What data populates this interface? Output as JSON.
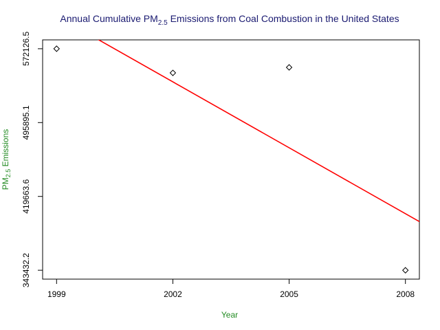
{
  "chart_data": {
    "type": "scatter",
    "title": [
      "Annual Cumulative PM",
      "2.5",
      " Emissions from Coal Combustion in the United States"
    ],
    "x_label": "Year",
    "y_label": [
      "PM",
      "2.5",
      " Emissions"
    ],
    "x": [
      1999,
      2002,
      2005,
      2008
    ],
    "values": [
      572126.5,
      547191,
      552890,
      343432.2
    ],
    "color": "#000000",
    "trend_line": {
      "color": "#ff0000",
      "x": [
        1998.64,
        2008.36
      ],
      "values": [
        614132,
        393688
      ]
    },
    "xlim": [
      1998.64,
      2008.36
    ],
    "xticks": [
      1999,
      2002,
      2005,
      2008
    ],
    "ylim": [
      334284.4,
      581274.3
    ],
    "yticks": [
      343432.2,
      419663.6,
      495895.1,
      572126.5
    ],
    "title_color": "#191970",
    "label_color": "#228b22"
  }
}
